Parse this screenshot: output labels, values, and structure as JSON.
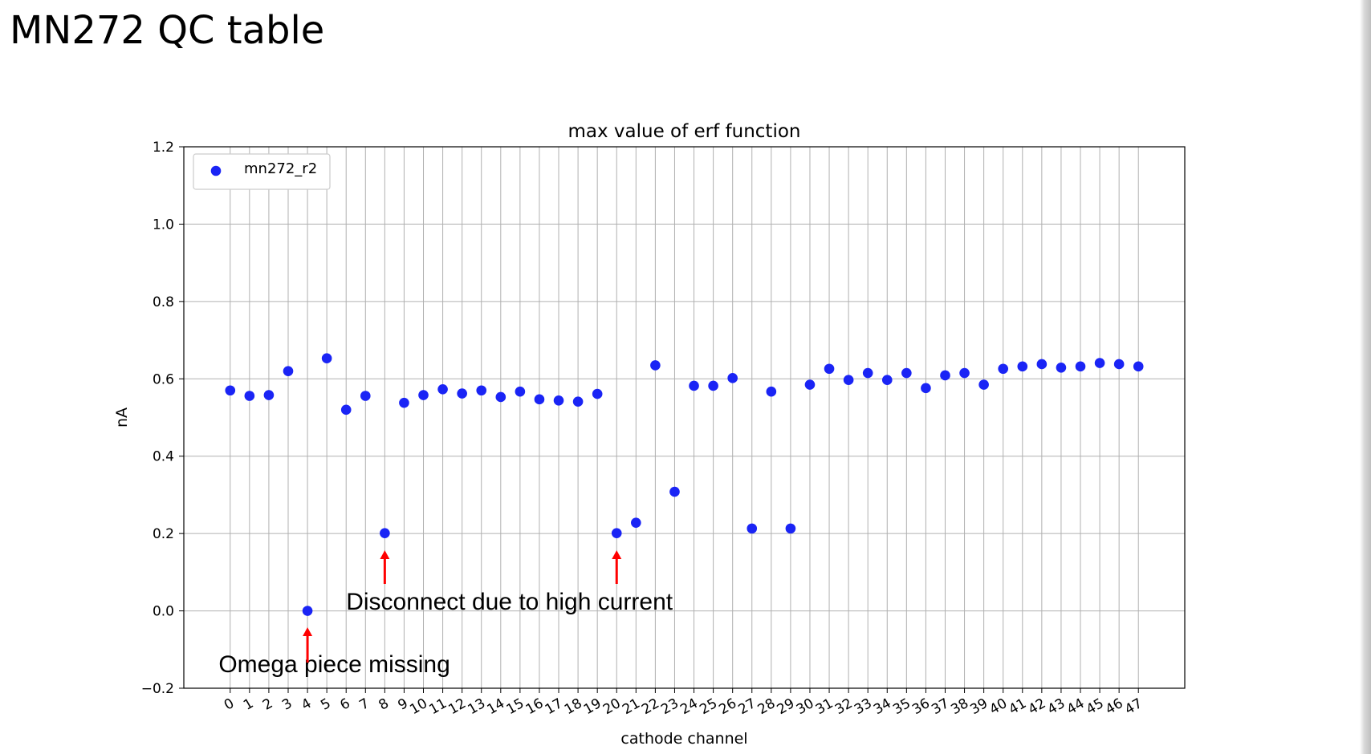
{
  "slide": {
    "title": "MN272 QC table"
  },
  "chart_data": {
    "type": "scatter",
    "title": "max value of erf function",
    "xlabel": "cathode channel",
    "ylabel": "nA",
    "ylim": [
      -0.2,
      1.2
    ],
    "xlim": [
      -2.4,
      49.4
    ],
    "grid": true,
    "legend_position": "top-left",
    "x": [
      0,
      1,
      2,
      3,
      4,
      5,
      6,
      7,
      8,
      9,
      10,
      11,
      12,
      13,
      14,
      15,
      16,
      17,
      18,
      19,
      20,
      21,
      22,
      23,
      24,
      25,
      26,
      27,
      28,
      29,
      30,
      31,
      32,
      33,
      34,
      35,
      36,
      37,
      38,
      39,
      40,
      41,
      42,
      43,
      44,
      45,
      46,
      47
    ],
    "y_ticks": [
      -0.2,
      0.0,
      0.2,
      0.4,
      0.6,
      0.8,
      1.0,
      1.2
    ],
    "y_tick_labels": [
      "−0.2",
      "0.0",
      "0.2",
      "0.4",
      "0.6",
      "0.8",
      "1.0",
      "1.2"
    ],
    "series": [
      {
        "name": "mn272_r2",
        "color": "#1a24f5",
        "values": [
          0.57,
          0.556,
          0.558,
          0.62,
          0.0,
          0.653,
          0.52,
          0.556,
          0.201,
          0.538,
          0.558,
          0.573,
          0.562,
          0.57,
          0.553,
          0.567,
          0.547,
          0.544,
          0.541,
          0.561,
          0.201,
          0.228,
          0.635,
          0.308,
          0.582,
          0.582,
          0.602,
          0.213,
          0.567,
          0.213,
          0.585,
          0.626,
          0.597,
          0.615,
          0.597,
          0.615,
          0.576,
          0.609,
          0.615,
          0.585,
          0.626,
          0.632,
          0.638,
          0.629,
          0.632,
          0.641,
          0.638,
          0.632
        ]
      }
    ],
    "annotations": [
      {
        "text": "Disconnect due to high current",
        "arrow_color": "#ff0000",
        "arrow_targets": [
          8,
          20
        ]
      },
      {
        "text": "Omega piece missing",
        "arrow_color": "#ff0000",
        "arrow_targets": [
          4
        ]
      }
    ]
  }
}
